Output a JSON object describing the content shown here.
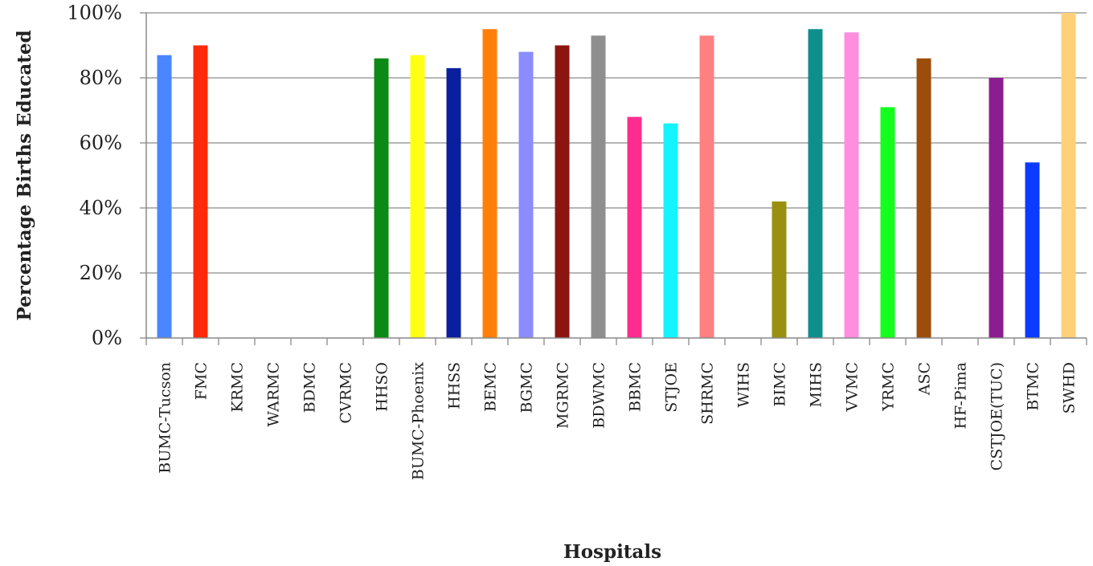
{
  "chart_data": {
    "type": "bar",
    "xlabel": "Hospitals",
    "ylabel": "Percentage Births Educated",
    "ylim": [
      0,
      100
    ],
    "yticks": [
      "0%",
      "20%",
      "40%",
      "60%",
      "80%",
      "100%"
    ],
    "grid": "horizontal",
    "categories": [
      "BUMC-Tucson",
      "FMC",
      "KRMC",
      "WARMC",
      "BDMC",
      "CVRMC",
      "HHSO",
      "BUMC-Phoenix",
      "HHSS",
      "BEMC",
      "BGMC",
      "MGRMC",
      "BDWMC",
      "BBMC",
      "STJOE",
      "SHRMC",
      "WIHS",
      "BIMC",
      "MIHS",
      "VVMC",
      "YRMC",
      "ASC",
      "HF-Pima",
      "CSTJOE(TUC)",
      "BTMC",
      "SWHD"
    ],
    "values": [
      87,
      90,
      0,
      0,
      0,
      0,
      86,
      87,
      83,
      95,
      88,
      90,
      93,
      68,
      66,
      93,
      0,
      42,
      95,
      94,
      71,
      86,
      0,
      80,
      54,
      100
    ],
    "colors": [
      "#4a86ff",
      "#ff2a0a",
      "#888888",
      "#888888",
      "#888888",
      "#888888",
      "#0b8a15",
      "#ffff14",
      "#0a1f9e",
      "#ff7f0a",
      "#8a8cff",
      "#8b160f",
      "#8f8f8f",
      "#ff2d8f",
      "#14f4ff",
      "#ff8080",
      "#888888",
      "#999010",
      "#0f8f8c",
      "#ff8ede",
      "#14ff1d",
      "#9c4d0a",
      "#888888",
      "#8b1e8f",
      "#0a3bff",
      "#ffd07a"
    ]
  }
}
